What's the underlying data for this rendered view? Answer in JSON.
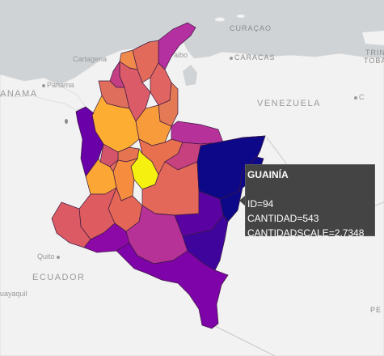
{
  "basemap": {
    "place_labels": [
      {
        "id": "curacao",
        "text": "CURAÇAO",
        "cls": "caps"
      },
      {
        "id": "caracas",
        "text": "CARACAS",
        "cls": "caps"
      },
      {
        "id": "venezuela",
        "text": "VENEZUELA",
        "cls": "country"
      },
      {
        "id": "cartagena",
        "text": "Cartagena",
        "cls": "road"
      },
      {
        "id": "aibo",
        "text": "aibo",
        "cls": "road"
      },
      {
        "id": "panama-city",
        "text": "Panama",
        "cls": "road"
      },
      {
        "id": "panama",
        "text": "ANAMA",
        "cls": "country"
      },
      {
        "id": "quito",
        "text": "Quito",
        "cls": "road"
      },
      {
        "id": "ecuador",
        "text": "ECUADOR",
        "cls": "country"
      },
      {
        "id": "guayaquil",
        "text": "uayaquil",
        "cls": "road"
      },
      {
        "id": "trinidad-1",
        "text": "TRIN",
        "cls": "caps"
      },
      {
        "id": "trinidad-2",
        "text": "TOBA",
        "cls": "caps"
      },
      {
        "id": "tobago-city",
        "text": "C",
        "cls": "road"
      },
      {
        "id": "bottom-right",
        "text": "PE",
        "cls": "caps"
      }
    ]
  },
  "departments": [
    {
      "name": "La Guajira",
      "fill": "#b42fa0"
    },
    {
      "name": "Magdalena",
      "fill": "#e16a5b"
    },
    {
      "name": "Atlántico",
      "fill": "#f08a4b"
    },
    {
      "name": "Bolívar",
      "fill": "#db5c68"
    },
    {
      "name": "Cesar",
      "fill": "#e06461"
    },
    {
      "name": "Sucre",
      "fill": "#c43e83"
    },
    {
      "name": "Córdoba",
      "fill": "#e06e5c"
    },
    {
      "name": "Norte de Santander",
      "fill": "#e47a55"
    },
    {
      "name": "Antioquia",
      "fill": "#fdae32"
    },
    {
      "name": "Chocó",
      "fill": "#6a00a8"
    },
    {
      "name": "Santander",
      "fill": "#f89c3b"
    },
    {
      "name": "Arauca",
      "fill": "#b7319b"
    },
    {
      "name": "Boyacá",
      "fill": "#e8704f"
    },
    {
      "name": "Casanare",
      "fill": "#c7417f"
    },
    {
      "name": "Caldas",
      "fill": "#e77451"
    },
    {
      "name": "Risaralda",
      "fill": "#d4546a"
    },
    {
      "name": "Cundinamarca",
      "fill": "#f5f00f"
    },
    {
      "name": "Tolima",
      "fill": "#f68d3e"
    },
    {
      "name": "Valle del Cauca",
      "fill": "#fca636"
    },
    {
      "name": "Quindío",
      "fill": "#e36c5c"
    },
    {
      "name": "Huila",
      "fill": "#e46656"
    },
    {
      "name": "Meta",
      "fill": "#e4685a"
    },
    {
      "name": "Vichada",
      "fill": "#0d0887"
    },
    {
      "name": "Cauca",
      "fill": "#de5c60"
    },
    {
      "name": "Nariño",
      "fill": "#db5a64"
    },
    {
      "name": "Putumayo",
      "fill": "#8d09a7"
    },
    {
      "name": "Caquetá",
      "fill": "#b63296"
    },
    {
      "name": "Guaviare",
      "fill": "#5b02a3"
    },
    {
      "name": "Guainía",
      "fill": "#0d0887"
    },
    {
      "name": "Vaupés",
      "fill": "#3f049c"
    },
    {
      "name": "Amazonas",
      "fill": "#7e03a8"
    },
    {
      "name": "San Andrés",
      "fill": "#8a8a8a"
    }
  ],
  "tooltip": {
    "title": "GUAINÍA",
    "id_line": "ID=94",
    "cantidad_line": "CANTIDAD=543",
    "scale_line": "CANTIDADSCALE=2.7348"
  }
}
